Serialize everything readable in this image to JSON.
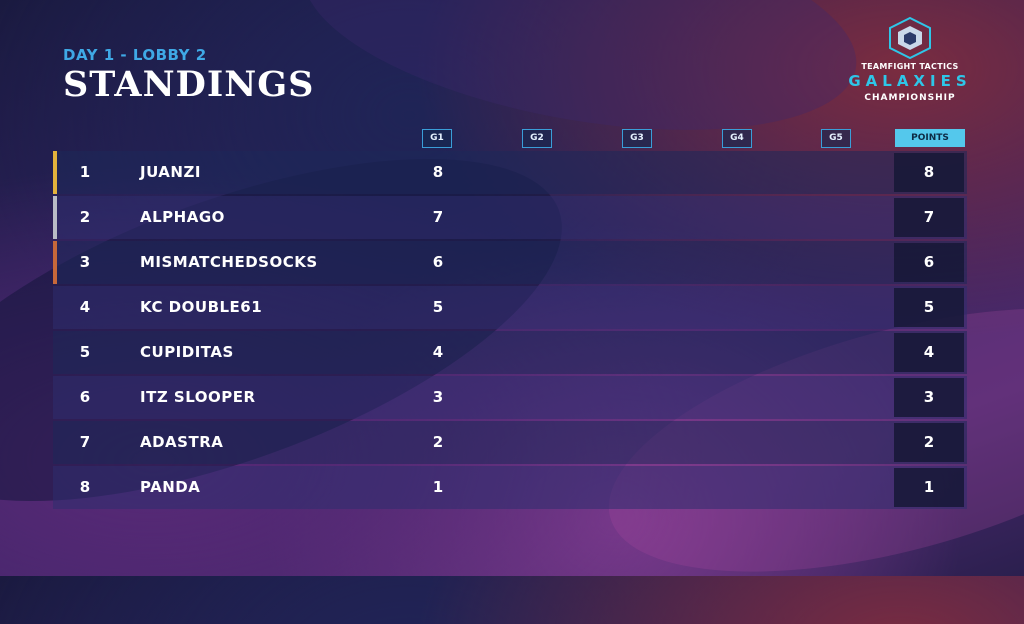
{
  "header": {
    "subtitle": "DAY 1 - LOBBY 2",
    "title": "STANDINGS"
  },
  "logo": {
    "line1": "TEAMFIGHT TACTICS",
    "line2": "GALAXIES",
    "line3": "CHAMPIONSHIP"
  },
  "columns": {
    "g1": "G1",
    "g2": "G2",
    "g3": "G3",
    "g4": "G4",
    "g5": "G5",
    "points": "POINTS"
  },
  "colors": {
    "accent": "#3fa9e6",
    "points_header": "#54c8ec",
    "gold": "#e3b23c",
    "silver": "#b9bcc6",
    "bronze": "#c7683a"
  },
  "standings": [
    {
      "rank": "1",
      "name": "JUANZI",
      "g1": "8",
      "points": "8",
      "medal": "gold"
    },
    {
      "rank": "2",
      "name": "ALPHAGO",
      "g1": "7",
      "points": "7",
      "medal": "silver"
    },
    {
      "rank": "3",
      "name": "MISMATCHEDSOCKS",
      "g1": "6",
      "points": "6",
      "medal": "bronze"
    },
    {
      "rank": "4",
      "name": "KC DOUBLE61",
      "g1": "5",
      "points": "5",
      "medal": ""
    },
    {
      "rank": "5",
      "name": "CUPIDITAS",
      "g1": "4",
      "points": "4",
      "medal": ""
    },
    {
      "rank": "6",
      "name": "ITZ SLOOPER",
      "g1": "3",
      "points": "3",
      "medal": ""
    },
    {
      "rank": "7",
      "name": "ADASTRA",
      "g1": "2",
      "points": "2",
      "medal": ""
    },
    {
      "rank": "8",
      "name": "PANDA",
      "g1": "1",
      "points": "1",
      "medal": ""
    }
  ]
}
